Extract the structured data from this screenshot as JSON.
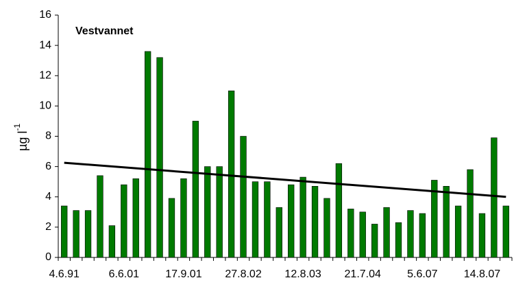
{
  "chart_data": {
    "type": "bar",
    "title": "Vestvannet",
    "y_label": "µg l",
    "y_label_sup": "-1",
    "categories": [
      "4.6.91",
      null,
      null,
      null,
      null,
      "6.6.01",
      null,
      null,
      null,
      null,
      "17.9.01",
      null,
      null,
      null,
      null,
      "27.8.02",
      null,
      null,
      null,
      null,
      "12.8.03",
      null,
      null,
      null,
      null,
      "21.7.04",
      null,
      null,
      null,
      null,
      "5.6.07",
      null,
      null,
      null,
      null,
      "14.8.07",
      null,
      null
    ],
    "values": [
      3.4,
      3.1,
      3.1,
      5.4,
      2.1,
      4.8,
      5.2,
      13.6,
      13.2,
      3.9,
      5.2,
      9.0,
      6.0,
      6.0,
      11.0,
      8.0,
      5.0,
      5.0,
      3.3,
      4.8,
      5.3,
      4.7,
      3.9,
      6.2,
      3.2,
      3.0,
      2.2,
      3.3,
      2.3,
      3.1,
      2.9,
      5.1,
      4.7,
      3.4,
      5.8,
      2.9,
      7.9,
      3.4
    ],
    "color": "#007a00",
    "trend": {
      "color": "#000000",
      "values": [
        6.25,
        4.0
      ]
    },
    "ylim": [
      0,
      16
    ],
    "yticks": [
      0,
      2,
      4,
      6,
      8,
      10,
      12,
      14,
      16
    ],
    "grid": false
  }
}
